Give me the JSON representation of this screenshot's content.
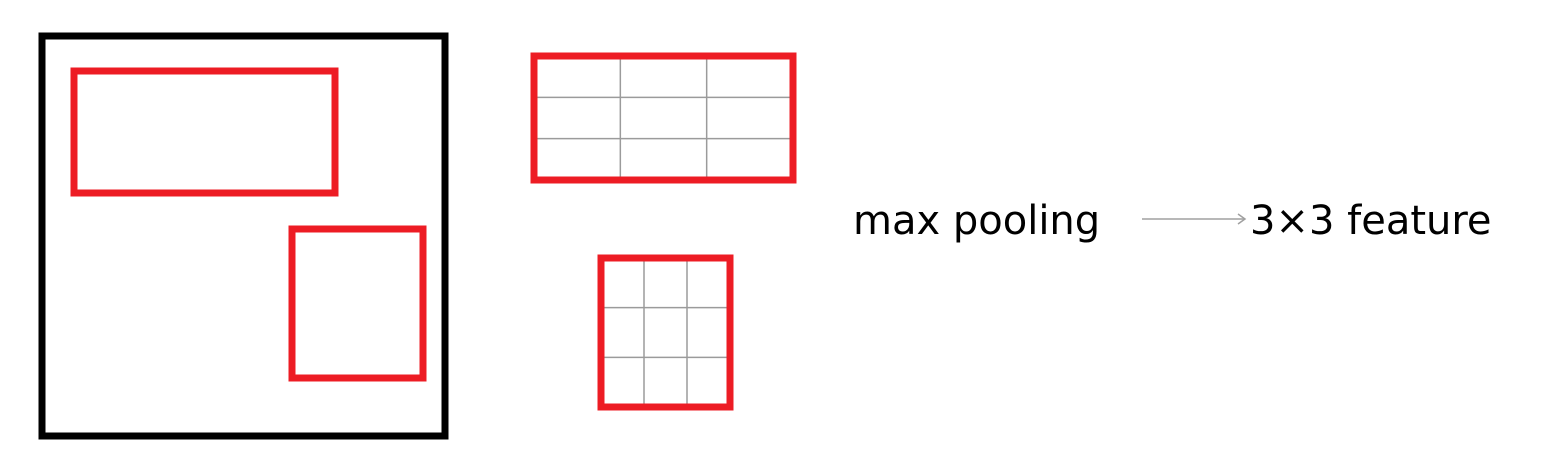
{
  "colors": {
    "frame": "#000000",
    "region": "#ed1c24",
    "grid": "#9b9b9b",
    "arrow": "#a0a0a0",
    "background": "#ffffff"
  },
  "labels": {
    "operation": "max pooling",
    "output": "3×3 feature"
  },
  "pooling_grid": {
    "rows": 3,
    "cols": 3
  }
}
